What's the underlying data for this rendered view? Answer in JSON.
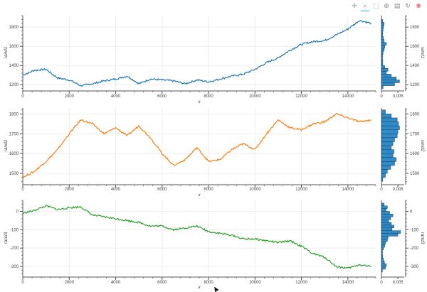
{
  "toolbar": {
    "tools": [
      {
        "name": "pan-tool",
        "icon": "pan-icon",
        "glyph": "✛"
      },
      {
        "name": "box-zoom-tool",
        "icon": "box-zoom-icon",
        "glyph": "⌕"
      },
      {
        "name": "wheel-zoom-tool",
        "icon": "wheel-zoom-icon",
        "glyph": "⬚"
      },
      {
        "name": "crosshair-tool",
        "icon": "crosshair-icon",
        "glyph": "⊕"
      },
      {
        "name": "save-tool",
        "icon": "save-icon",
        "glyph": "▤"
      },
      {
        "name": "reset-tool",
        "icon": "reset-icon",
        "glyph": "↻"
      },
      {
        "name": "bokeh-logo",
        "icon": "bokeh-logo-icon",
        "glyph": "❀"
      }
    ]
  },
  "chart_data": [
    {
      "type": "line",
      "ylabel": "rand1",
      "xlabel": "x",
      "color": "#1f77b4",
      "xlim": [
        0,
        15200
      ],
      "ylim": [
        1150,
        1920
      ],
      "xticks": [
        0,
        2000,
        4000,
        6000,
        8000,
        10000,
        12000,
        14000
      ],
      "yticks": [
        1200,
        1400,
        1600,
        1800
      ],
      "x": [
        0,
        500,
        1000,
        1500,
        2000,
        2500,
        3000,
        3500,
        4000,
        4500,
        5000,
        5500,
        6000,
        6500,
        7000,
        7500,
        8000,
        8500,
        9000,
        9500,
        10000,
        10500,
        11000,
        11500,
        12000,
        12500,
        13000,
        13500,
        14000,
        14500,
        15000
      ],
      "y": [
        1300,
        1350,
        1360,
        1270,
        1250,
        1190,
        1210,
        1240,
        1260,
        1290,
        1210,
        1260,
        1250,
        1240,
        1210,
        1250,
        1230,
        1260,
        1290,
        1310,
        1360,
        1430,
        1480,
        1560,
        1620,
        1650,
        1660,
        1720,
        1780,
        1870,
        1840
      ],
      "hist": {
        "title": "",
        "xticks": [
          0,
          0.005
        ],
        "xlim": [
          0,
          0.0065
        ],
        "bins": [
          [
            1160,
            1190,
            0.0005
          ],
          [
            1190,
            1220,
            0.004
          ],
          [
            1220,
            1250,
            0.0055
          ],
          [
            1250,
            1280,
            0.0045
          ],
          [
            1280,
            1310,
            0.003
          ],
          [
            1310,
            1340,
            0.0015
          ],
          [
            1340,
            1370,
            0.002
          ],
          [
            1370,
            1400,
            0.001
          ],
          [
            1400,
            1430,
            0.0004
          ],
          [
            1430,
            1460,
            0.0004
          ],
          [
            1460,
            1490,
            0.0003
          ],
          [
            1490,
            1520,
            0.0004
          ],
          [
            1520,
            1550,
            0.0005
          ],
          [
            1550,
            1580,
            0.0008
          ],
          [
            1580,
            1610,
            0.001
          ],
          [
            1610,
            1640,
            0.0015
          ],
          [
            1640,
            1670,
            0.0008
          ],
          [
            1670,
            1700,
            0.0006
          ],
          [
            1700,
            1730,
            0.0004
          ],
          [
            1730,
            1760,
            0.0004
          ],
          [
            1760,
            1790,
            0.0005
          ],
          [
            1790,
            1820,
            0.0006
          ],
          [
            1820,
            1850,
            0.0008
          ],
          [
            1850,
            1880,
            0.0004
          ]
        ]
      }
    },
    {
      "type": "line",
      "ylabel": "rand2",
      "xlabel": "x",
      "color": "#ff7f0e",
      "xlim": [
        0,
        15200
      ],
      "ylim": [
        1450,
        1830
      ],
      "xticks": [
        0,
        2000,
        4000,
        6000,
        8000,
        10000,
        12000,
        14000
      ],
      "yticks": [
        1500,
        1600,
        1700,
        1800
      ],
      "x": [
        0,
        500,
        1000,
        1500,
        2000,
        2500,
        3000,
        3500,
        4000,
        4500,
        5000,
        5500,
        6000,
        6500,
        7000,
        7500,
        8000,
        8500,
        9000,
        9500,
        10000,
        10500,
        11000,
        11500,
        12000,
        12500,
        13000,
        13500,
        14000,
        14500,
        15000
      ],
      "y": [
        1480,
        1510,
        1560,
        1620,
        1700,
        1770,
        1750,
        1700,
        1730,
        1690,
        1740,
        1680,
        1600,
        1540,
        1570,
        1630,
        1560,
        1570,
        1620,
        1650,
        1620,
        1700,
        1770,
        1730,
        1720,
        1750,
        1760,
        1800,
        1780,
        1760,
        1770
      ],
      "hist": {
        "title": "",
        "xticks": [
          0,
          0.005
        ],
        "xlim": [
          0,
          0.0065
        ],
        "bins": [
          [
            1460,
            1480,
            0.0004
          ],
          [
            1480,
            1500,
            0.0012
          ],
          [
            1500,
            1520,
            0.0018
          ],
          [
            1520,
            1540,
            0.0028
          ],
          [
            1540,
            1560,
            0.004
          ],
          [
            1560,
            1580,
            0.0045
          ],
          [
            1580,
            1600,
            0.0035
          ],
          [
            1600,
            1620,
            0.0038
          ],
          [
            1620,
            1640,
            0.003
          ],
          [
            1640,
            1660,
            0.0035
          ],
          [
            1660,
            1680,
            0.004
          ],
          [
            1680,
            1700,
            0.0048
          ],
          [
            1700,
            1720,
            0.005
          ],
          [
            1720,
            1740,
            0.0055
          ],
          [
            1740,
            1760,
            0.0052
          ],
          [
            1760,
            1780,
            0.0048
          ],
          [
            1780,
            1800,
            0.003
          ],
          [
            1800,
            1820,
            0.0012
          ]
        ]
      }
    },
    {
      "type": "line",
      "ylabel": "rand3",
      "xlabel": "x",
      "color": "#2ca02c",
      "xlim": [
        0,
        15200
      ],
      "ylim": [
        -350,
        60
      ],
      "xticks": [
        0,
        2000,
        4000,
        6000,
        8000,
        10000,
        12000,
        14000
      ],
      "yticks": [
        -300,
        -200,
        -100,
        0
      ],
      "x": [
        0,
        500,
        1000,
        1500,
        2000,
        2500,
        3000,
        3500,
        4000,
        4500,
        5000,
        5500,
        6000,
        6500,
        7000,
        7500,
        8000,
        8500,
        9000,
        9500,
        10000,
        10500,
        11000,
        11500,
        12000,
        12500,
        13000,
        13500,
        14000,
        14500,
        15000
      ],
      "y": [
        -10,
        5,
        30,
        10,
        20,
        25,
        -20,
        -30,
        -40,
        -50,
        -60,
        -80,
        -80,
        -100,
        -90,
        -80,
        -110,
        -120,
        -130,
        -150,
        -150,
        -160,
        -170,
        -160,
        -190,
        -230,
        -250,
        -300,
        -310,
        -290,
        -300
      ],
      "hist": {
        "title": "",
        "xticks": [
          0,
          0.005
        ],
        "xlim": [
          0,
          0.0065
        ],
        "bins": [
          [
            -330,
            -315,
            0.0003
          ],
          [
            -315,
            -300,
            0.0012
          ],
          [
            -300,
            -285,
            0.0015
          ],
          [
            -285,
            -270,
            0.0009
          ],
          [
            -270,
            -255,
            0.0006
          ],
          [
            -255,
            -240,
            0.0004
          ],
          [
            -240,
            -225,
            0.0003
          ],
          [
            -225,
            -210,
            0.0003
          ],
          [
            -210,
            -195,
            0.0006
          ],
          [
            -195,
            -180,
            0.001
          ],
          [
            -180,
            -165,
            0.0012
          ],
          [
            -165,
            -150,
            0.0018
          ],
          [
            -150,
            -135,
            0.002
          ],
          [
            -135,
            -120,
            0.005
          ],
          [
            -120,
            -105,
            0.0058
          ],
          [
            -105,
            -90,
            0.0032
          ],
          [
            -90,
            -75,
            0.0038
          ],
          [
            -75,
            -60,
            0.003
          ],
          [
            -60,
            -45,
            0.0022
          ],
          [
            -45,
            -30,
            0.0028
          ],
          [
            -30,
            -15,
            0.0035
          ],
          [
            -15,
            0,
            0.0025
          ],
          [
            0,
            15,
            0.0014
          ],
          [
            15,
            30,
            0.0018
          ],
          [
            30,
            45,
            0.0008
          ]
        ]
      }
    }
  ]
}
